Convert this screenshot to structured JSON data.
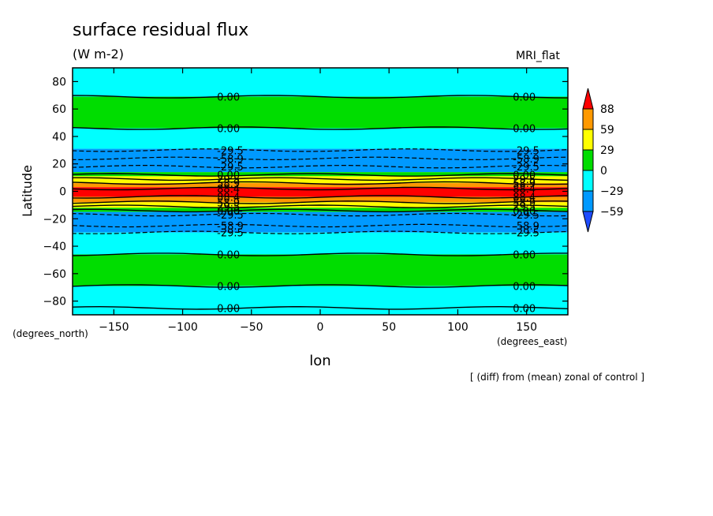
{
  "chart_data": {
    "type": "heatmap",
    "title": "surface residual flux",
    "subtitle": "(W m-2)",
    "model_label": "MRI_flat",
    "ylabel": "Latitude",
    "xlabel": "lon",
    "y_units": "(degrees_north)",
    "x_units": "(degrees_east)",
    "footnote": "[ (diff) from (mean) zonal of control ]",
    "xlim": [
      -180,
      180
    ],
    "ylim": [
      -90,
      90
    ],
    "x_ticks": [
      -150,
      -100,
      -50,
      0,
      50,
      100,
      150
    ],
    "y_ticks": [
      80,
      60,
      40,
      20,
      0,
      -20,
      -40,
      -60,
      -80
    ],
    "colorbar": {
      "levels": [
        88,
        59,
        29,
        0,
        -29,
        -59
      ],
      "labels": [
        "88",
        "59",
        "29",
        "0",
        "−29",
        "−59"
      ],
      "colors": [
        "#ff0000",
        "#ff9900",
        "#ffff00",
        "#00dd00",
        "#00ffff",
        "#0099ff",
        "#1f4cff"
      ]
    },
    "bands": [
      {
        "lat_top": 90,
        "lat_bottom": 69,
        "color": "#00ffff"
      },
      {
        "lat_top": 69,
        "lat_bottom": 46,
        "color": "#00dd00"
      },
      {
        "lat_top": 46,
        "lat_bottom": 31,
        "color": "#00ffff"
      },
      {
        "lat_top": 31,
        "lat_bottom": 14,
        "color": "#0099ff"
      },
      {
        "lat_top": 14,
        "lat_bottom": 11,
        "color": "#00dd00"
      },
      {
        "lat_top": 11,
        "lat_bottom": 6,
        "color": "#ffff00"
      },
      {
        "lat_top": 6,
        "lat_bottom": 3,
        "color": "#ff9900"
      },
      {
        "lat_top": 3,
        "lat_bottom": -4,
        "color": "#ff0000"
      },
      {
        "lat_top": -4,
        "lat_bottom": -8,
        "color": "#ff9900"
      },
      {
        "lat_top": -8,
        "lat_bottom": -12,
        "color": "#ffff00"
      },
      {
        "lat_top": -12,
        "lat_bottom": -15,
        "color": "#00dd00"
      },
      {
        "lat_top": -15,
        "lat_bottom": -30,
        "color": "#0099ff"
      },
      {
        "lat_top": -30,
        "lat_bottom": -46,
        "color": "#00ffff"
      },
      {
        "lat_top": -46,
        "lat_bottom": -69,
        "color": "#00dd00"
      },
      {
        "lat_top": -69,
        "lat_bottom": -90,
        "color": "#00ffff"
      }
    ],
    "contours": [
      {
        "lat": 69,
        "value": "0.00",
        "dashed": false
      },
      {
        "lat": 46,
        "value": "0.00",
        "dashed": false
      },
      {
        "lat": 30,
        "value": "-29.5",
        "dashed": true
      },
      {
        "lat": 24,
        "value": "-58.9",
        "dashed": true
      },
      {
        "lat": 18,
        "value": "-29.5",
        "dashed": true
      },
      {
        "lat": 12,
        "value": "0.00",
        "dashed": false
      },
      {
        "lat": 9,
        "value": "29.5",
        "dashed": false
      },
      {
        "lat": 6,
        "value": "58.9",
        "dashed": false
      },
      {
        "lat": 2,
        "value": "88.4",
        "dashed": false
      },
      {
        "lat": -4,
        "value": "88.4",
        "dashed": false
      },
      {
        "lat": -8,
        "value": "58.9",
        "dashed": false
      },
      {
        "lat": -11,
        "value": "29.5",
        "dashed": false
      },
      {
        "lat": -14,
        "value": "0.00",
        "dashed": false
      },
      {
        "lat": -17,
        "value": "-29.5",
        "dashed": true
      },
      {
        "lat": -25,
        "value": "-58.9",
        "dashed": true
      },
      {
        "lat": -30,
        "value": "-29.5",
        "dashed": true
      },
      {
        "lat": -46,
        "value": "0.00",
        "dashed": false
      },
      {
        "lat": -69,
        "value": "0.00",
        "dashed": false
      },
      {
        "lat": -85,
        "value": "0.00",
        "dashed": false
      }
    ]
  }
}
